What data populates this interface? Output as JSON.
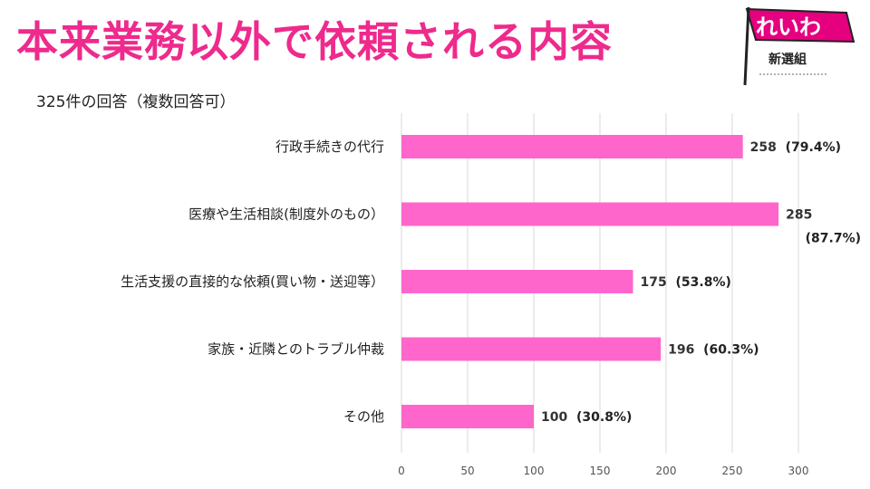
{
  "title": "本来業務以外で依頼される内容",
  "subtitle": "325件の回答（複数回答可）",
  "logo": {
    "main_text": "れいわ",
    "sub_text": "新選組"
  },
  "colors": {
    "title": "#ee2a8c",
    "bar": "#ff66cc",
    "grid": "#d9d9d9"
  },
  "chart_data": {
    "type": "bar",
    "orientation": "horizontal",
    "categories": [
      "行政手続きの代行",
      "医療や生活相談(制度外のもの）",
      "生活支援の直接的な依頼(買い物・送迎等）",
      "家族・近隣とのトラブル仲裁",
      "その他"
    ],
    "values": [
      258,
      285,
      175,
      196,
      100
    ],
    "percent_labels": [
      "(79.4%)",
      "(87.7%)",
      "(53.8%)",
      "(60.3%)",
      "(30.8%)"
    ],
    "xlim": [
      0,
      300
    ],
    "xticks": [
      0,
      50,
      100,
      150,
      200,
      250,
      300
    ],
    "grid": true,
    "legend": "none"
  }
}
